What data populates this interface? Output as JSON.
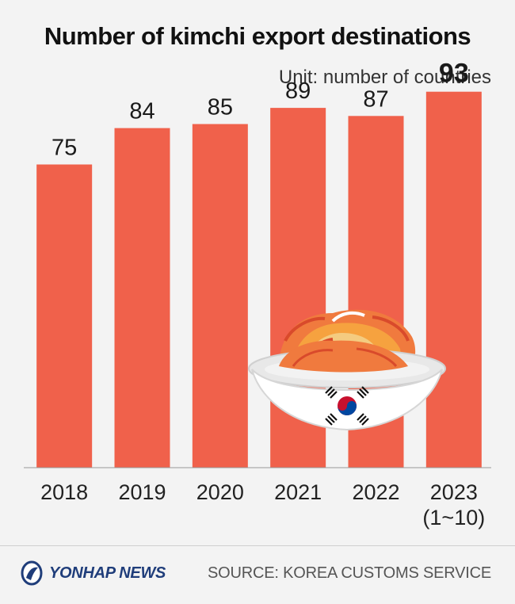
{
  "title": "Number of kimchi export destinations",
  "unit": "Unit: number of countries",
  "chart_data": {
    "type": "bar",
    "categories": [
      "2018",
      "2019",
      "2020",
      "2021",
      "2022",
      "2023\n(1~10)"
    ],
    "values": [
      75,
      84,
      85,
      89,
      87,
      93
    ],
    "value_labels": [
      "75",
      "84",
      "85",
      "89",
      "87",
      "93"
    ],
    "highlight_index": 5,
    "ylim": [
      0,
      100
    ],
    "bar_color": "#f0614b",
    "grid": false
  },
  "footer": {
    "logo": "YONHAP NEWS",
    "source": "SOURCE: KOREA CUSTOMS SERVICE"
  },
  "illustration": {
    "bowl_icon": "kimchi-bowl-icon",
    "flag_icon": "korean-flag-icon"
  }
}
